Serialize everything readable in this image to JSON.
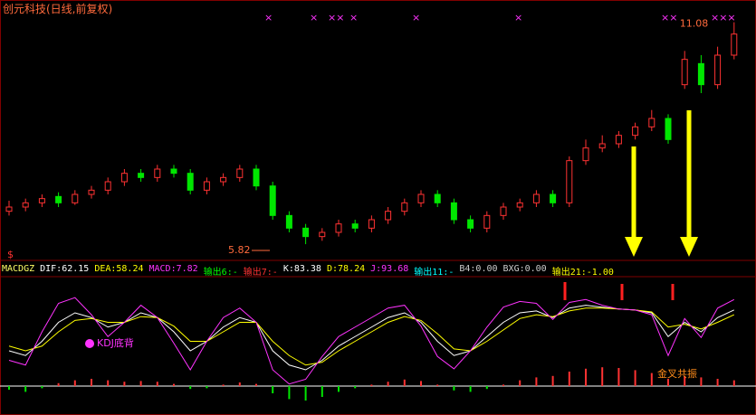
{
  "title": "创元科技(日线,前复权)",
  "chart_data": {
    "type": "candlestick",
    "ylim": [
      5.5,
      11.5
    ],
    "up_color": "#ff3232",
    "down_color": "#00e600",
    "open": [
      6.6,
      6.7,
      6.8,
      6.95,
      6.8,
      7.0,
      7.1,
      7.3,
      7.5,
      7.4,
      7.6,
      7.5,
      7.1,
      7.3,
      7.4,
      7.6,
      7.2,
      6.5,
      6.2,
      6.0,
      6.1,
      6.3,
      6.2,
      6.4,
      6.6,
      6.8,
      7.0,
      6.8,
      6.4,
      6.2,
      6.5,
      6.7,
      6.8,
      7.0,
      6.8,
      7.8,
      8.1,
      8.2,
      8.4,
      8.6,
      8.8,
      9.6,
      10.1,
      9.6,
      10.3
    ],
    "close": [
      6.7,
      6.8,
      6.9,
      6.8,
      7.0,
      7.1,
      7.3,
      7.5,
      7.4,
      7.6,
      7.5,
      7.1,
      7.3,
      7.4,
      7.6,
      7.2,
      6.5,
      6.2,
      6.0,
      6.1,
      6.3,
      6.2,
      6.4,
      6.6,
      6.8,
      7.0,
      6.8,
      6.4,
      6.2,
      6.5,
      6.7,
      6.8,
      7.0,
      6.8,
      7.8,
      8.1,
      8.2,
      8.4,
      8.6,
      8.8,
      8.3,
      10.2,
      9.6,
      10.3,
      10.8
    ],
    "high": [
      6.85,
      6.9,
      7.0,
      7.05,
      7.1,
      7.2,
      7.4,
      7.6,
      7.6,
      7.7,
      7.7,
      7.6,
      7.4,
      7.5,
      7.7,
      7.7,
      7.3,
      6.6,
      6.3,
      6.2,
      6.4,
      6.4,
      6.5,
      6.7,
      6.9,
      7.1,
      7.1,
      6.9,
      6.5,
      6.6,
      6.8,
      6.9,
      7.1,
      7.1,
      7.9,
      8.3,
      8.4,
      8.5,
      8.7,
      9.0,
      8.9,
      10.4,
      10.3,
      10.5,
      11.08
    ],
    "low": [
      6.5,
      6.6,
      6.7,
      6.7,
      6.75,
      6.9,
      7.0,
      7.2,
      7.3,
      7.3,
      7.4,
      7.0,
      7.0,
      7.2,
      7.3,
      7.1,
      6.4,
      6.1,
      5.82,
      5.9,
      6.0,
      6.1,
      6.1,
      6.3,
      6.5,
      6.7,
      6.7,
      6.3,
      6.1,
      6.1,
      6.4,
      6.6,
      6.7,
      6.7,
      6.7,
      7.7,
      8.0,
      8.1,
      8.3,
      8.5,
      8.2,
      9.5,
      9.4,
      9.5,
      10.2
    ],
    "annotations": [
      "5.82",
      "11.08",
      "$"
    ],
    "indicator": {
      "header": [
        {
          "text": "MACDGZ",
          "color": "#ffff66"
        },
        {
          "text": "DIF:62.15",
          "color": "#ffffff"
        },
        {
          "text": "DEA:58.24",
          "color": "#ffff00"
        },
        {
          "text": "MACD:7.82",
          "color": "#ff33ff"
        },
        {
          "text": "输出6:-",
          "color": "#00ff00"
        },
        {
          "text": "输出7:-",
          "color": "#ff3232"
        },
        {
          "text": "K:83.38",
          "color": "#ffffff"
        },
        {
          "text": "D:78.24",
          "color": "#ffff00"
        },
        {
          "text": "J:93.68",
          "color": "#ff33ff"
        },
        {
          "text": "输出11:-",
          "color": "#00ffff"
        },
        {
          "text": "B4:0.00",
          "color": "#cccccc"
        },
        {
          "text": "BXG:0.00",
          "color": "#cccccc"
        },
        {
          "text": "输出21:-1.00",
          "color": "#ffff00"
        }
      ],
      "kdj_lim": [
        0,
        100
      ],
      "macd_lim": [
        -40,
        40
      ],
      "series": [
        {
          "name": "K",
          "color": "#ffffff",
          "values": [
            40,
            35,
            50,
            70,
            80,
            75,
            65,
            70,
            80,
            75,
            60,
            40,
            50,
            65,
            75,
            70,
            40,
            25,
            20,
            30,
            45,
            55,
            65,
            75,
            80,
            70,
            50,
            35,
            40,
            55,
            70,
            80,
            82,
            75,
            85,
            88,
            86,
            84,
            83,
            80,
            55,
            70,
            60,
            75,
            83
          ]
        },
        {
          "name": "D",
          "color": "#ffff00",
          "values": [
            45,
            40,
            45,
            60,
            72,
            74,
            70,
            70,
            76,
            75,
            66,
            50,
            50,
            60,
            70,
            70,
            50,
            35,
            25,
            28,
            40,
            50,
            60,
            70,
            76,
            72,
            58,
            42,
            40,
            50,
            62,
            74,
            78,
            76,
            82,
            85,
            85,
            84,
            83,
            81,
            65,
            68,
            63,
            70,
            78
          ]
        },
        {
          "name": "J",
          "color": "#ff33ff",
          "values": [
            30,
            25,
            60,
            90,
            96,
            78,
            55,
            70,
            88,
            75,
            48,
            20,
            50,
            75,
            85,
            70,
            20,
            5,
            10,
            34,
            55,
            65,
            75,
            85,
            88,
            66,
            34,
            21,
            40,
            65,
            86,
            92,
            90,
            73,
            91,
            94,
            88,
            84,
            83,
            78,
            35,
            74,
            54,
            85,
            94
          ]
        }
      ],
      "macd": [
        -5,
        -8,
        -3,
        4,
        8,
        10,
        8,
        6,
        7,
        6,
        3,
        -4,
        -3,
        2,
        5,
        3,
        -10,
        -18,
        -20,
        -15,
        -8,
        -3,
        2,
        6,
        9,
        7,
        2,
        -6,
        -8,
        -4,
        2,
        8,
        12,
        14,
        20,
        24,
        26,
        25,
        22,
        18,
        10,
        14,
        12,
        10,
        8
      ],
      "labels": [
        "KDJ底背",
        "金叉共振"
      ]
    }
  }
}
